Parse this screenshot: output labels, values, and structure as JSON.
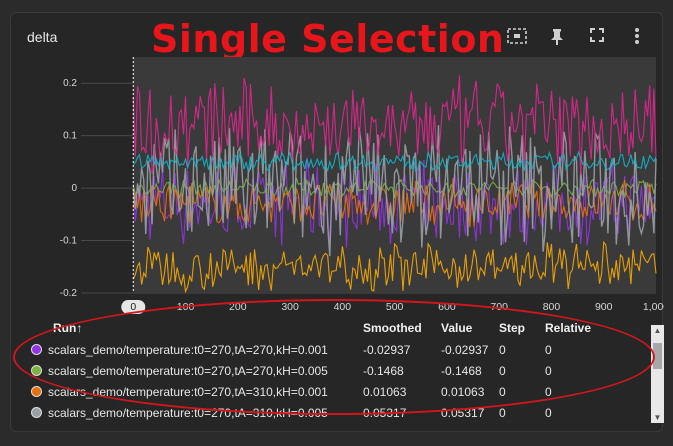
{
  "card": {
    "title": "delta"
  },
  "overlay": {
    "text": "Single Selection",
    "color": "#e8161b"
  },
  "toolbar": {
    "icons": [
      "fit-domain-icon",
      "pin-icon",
      "fullscreen-icon",
      "more-vert-icon"
    ]
  },
  "chart_data": {
    "type": "line",
    "title": "",
    "xlabel": "",
    "ylabel": "",
    "xlim": [
      -100,
      1000
    ],
    "ylim": [
      -0.2,
      0.25
    ],
    "y_ticks": [
      0.2,
      0.1,
      0,
      -0.1,
      -0.2
    ],
    "y_tick_labels": [
      "0.2",
      "0.1",
      "0",
      "-0.1",
      "-0.2"
    ],
    "x_ticks": [
      0,
      100,
      200,
      300,
      400,
      500,
      600,
      700,
      800,
      900,
      1000
    ],
    "x_tick_labels": [
      "0",
      "100",
      "200",
      "300",
      "400",
      "500",
      "600",
      "700",
      "800",
      "900",
      "1,000"
    ],
    "hover_x": 0,
    "hover_label": "0",
    "series": [
      {
        "color": "#9334e6",
        "level": -0.03,
        "spread": 0.09
      },
      {
        "color": "#7cb342",
        "level": 0.0,
        "spread": 0.02
      },
      {
        "color": "#e8710a",
        "level": -0.03,
        "spread": 0.05
      },
      {
        "color": "#9aa0a6",
        "level": 0.0,
        "spread": 0.14
      },
      {
        "color": "#e52592",
        "level": 0.12,
        "spread": 0.1
      },
      {
        "color": "#12b5cb",
        "level": 0.05,
        "spread": 0.02
      },
      {
        "color": "#f9ab00",
        "level": -0.15,
        "spread": 0.05
      }
    ]
  },
  "table": {
    "headers": {
      "run": "Run↑",
      "smoothed": "Smoothed",
      "value": "Value",
      "step": "Step",
      "relative": "Relative"
    },
    "rows": [
      {
        "color": "#9334e6",
        "run": "scalars_demo/temperature:t0=270,tA=270,kH=0.001",
        "smoothed": "-0.02937",
        "value": "-0.02937",
        "step": "0",
        "relative": "0"
      },
      {
        "color": "#7cb342",
        "run": "scalars_demo/temperature:t0=270,tA=270,kH=0.005",
        "smoothed": "-0.1468",
        "value": "-0.1468",
        "step": "0",
        "relative": "0"
      },
      {
        "color": "#e8710a",
        "run": "scalars_demo/temperature:t0=270,tA=310,kH=0.001",
        "smoothed": "0.01063",
        "value": "0.01063",
        "step": "0",
        "relative": "0"
      },
      {
        "color": "#9aa0a6",
        "run": "scalars_demo/temperature:t0=270,tA=310,kH=0.005",
        "smoothed": "0.05317",
        "value": "0.05317",
        "step": "0",
        "relative": "0"
      }
    ]
  }
}
